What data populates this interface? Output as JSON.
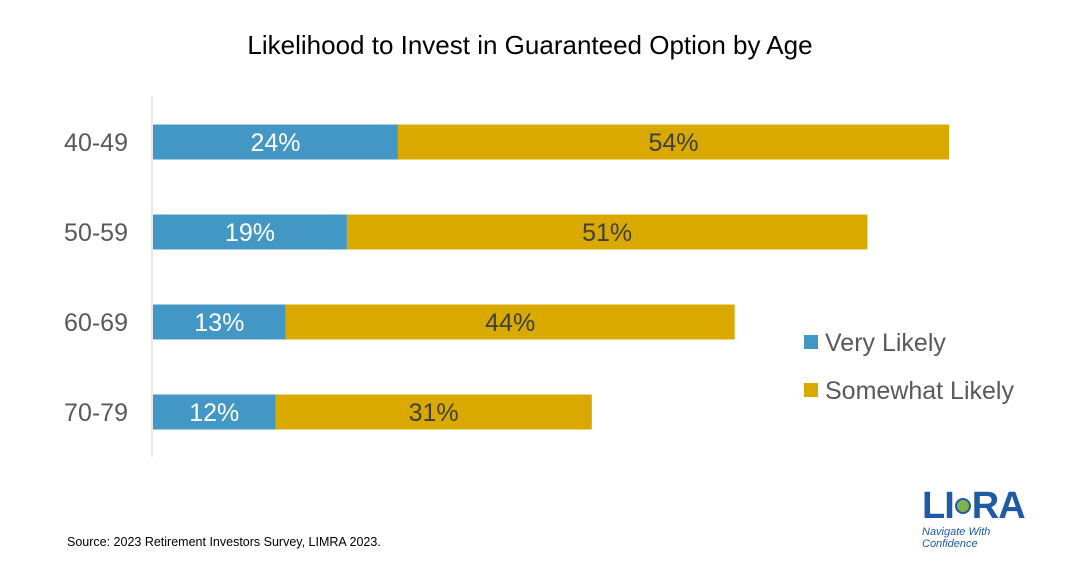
{
  "chart_data": {
    "type": "bar",
    "orientation": "horizontal",
    "stacked": true,
    "title": "Likelihood to Invest in Guaranteed Option by Age",
    "categories": [
      "40-49",
      "50-59",
      "60-69",
      "70-79"
    ],
    "series": [
      {
        "name": "Very Likely",
        "color": "#4397c4",
        "label_color": "#ffffff",
        "values": [
          24,
          19,
          13,
          12
        ],
        "labels": [
          "24%",
          "19%",
          "13%",
          "12%"
        ]
      },
      {
        "name": "Somewhat Likely",
        "color": "#d9a900",
        "label_color": "#404040",
        "values": [
          54,
          51,
          44,
          31
        ],
        "labels": [
          "54%",
          "51%",
          "44%",
          "31%"
        ]
      }
    ],
    "xlim": [
      0,
      78
    ],
    "xlabel": "",
    "ylabel": "",
    "grid": false,
    "legend": "right"
  },
  "source": "Source: 2023 Retirement Investors Survey, LIMRA 2023.",
  "logo": {
    "name_left": "LI",
    "name_right": "RA",
    "tagline_line1": "Navigate With",
    "tagline_line2": "Confidence"
  }
}
